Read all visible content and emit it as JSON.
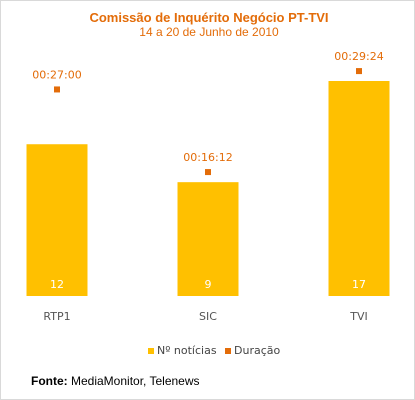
{
  "chart_data": {
    "type": "bar",
    "title": "Comissão de Inquérito Negócio PT-TVI",
    "subtitle": "14 a 20 de Junho de 2010",
    "categories": [
      "RTP1",
      "SIC",
      "TVI"
    ],
    "series": [
      {
        "name": "Nº notícias",
        "kind": "bar",
        "values": [
          12,
          9,
          17
        ],
        "value_labels": [
          "12",
          "9",
          "17"
        ]
      },
      {
        "name": "Duração",
        "kind": "marker",
        "values_seconds": [
          1620,
          972,
          1764
        ],
        "value_labels": [
          "00:27:00",
          "00:16:12",
          "00:29:24"
        ]
      }
    ],
    "ylim_bars": [
      0,
      17
    ],
    "ylim_duration_seconds": [
      0,
      2000
    ],
    "grid": false,
    "legend_position": "bottom-center",
    "colors": {
      "bar": "#ffc000",
      "marker": "#e36c09",
      "title": "#e36c09",
      "bar_label": "#ffffff",
      "tick": "#555555"
    }
  },
  "source": {
    "label": "Fonte:",
    "text": "MediaMonitor, Telenews"
  }
}
